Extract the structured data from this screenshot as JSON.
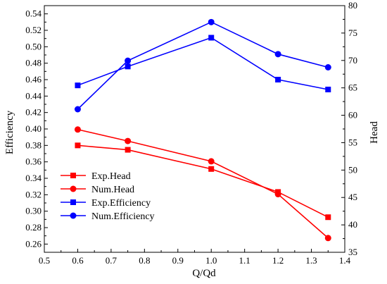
{
  "chart_data": {
    "type": "line",
    "title": "",
    "xlabel": "Q/Qd",
    "ylabel_left": "Efficiency",
    "ylabel_right": "Head",
    "x": [
      0.6,
      0.75,
      1.0,
      1.2,
      1.35
    ],
    "xlim": [
      0.5,
      1.4
    ],
    "xticks": [
      "0.5",
      "0.6",
      "0.7",
      "0.8",
      "0.9",
      "1.0",
      "1.1",
      "1.2",
      "1.3",
      "1.4"
    ],
    "ylim_left": [
      0.25,
      0.55
    ],
    "yticks_left": [
      "0.26",
      "0.28",
      "0.30",
      "0.32",
      "0.34",
      "0.36",
      "0.38",
      "0.40",
      "0.42",
      "0.44",
      "0.46",
      "0.48",
      "0.50",
      "0.52",
      "0.54"
    ],
    "ylim_right": [
      35,
      80
    ],
    "yticks_right": [
      "35",
      "40",
      "45",
      "50",
      "55",
      "60",
      "65",
      "70",
      "75",
      "80"
    ],
    "grid": false,
    "legend_position": "lower-left",
    "series": [
      {
        "name": "Exp.Head",
        "axis": "right",
        "marker": "square",
        "color": "#ff0000",
        "values": [
          54.5,
          53.7,
          50.2,
          46.0,
          41.4
        ]
      },
      {
        "name": "Num.Head",
        "axis": "right",
        "marker": "circle",
        "color": "#ff0000",
        "values": [
          57.4,
          55.3,
          51.6,
          45.6,
          37.6
        ]
      },
      {
        "name": "Exp.Efficiency",
        "axis": "left",
        "marker": "square",
        "color": "#0000ff",
        "values": [
          0.453,
          0.476,
          0.511,
          0.46,
          0.448
        ]
      },
      {
        "name": "Num.Efficiency",
        "axis": "left",
        "marker": "circle",
        "color": "#0000ff",
        "values": [
          0.424,
          0.483,
          0.53,
          0.491,
          0.475
        ]
      }
    ]
  }
}
